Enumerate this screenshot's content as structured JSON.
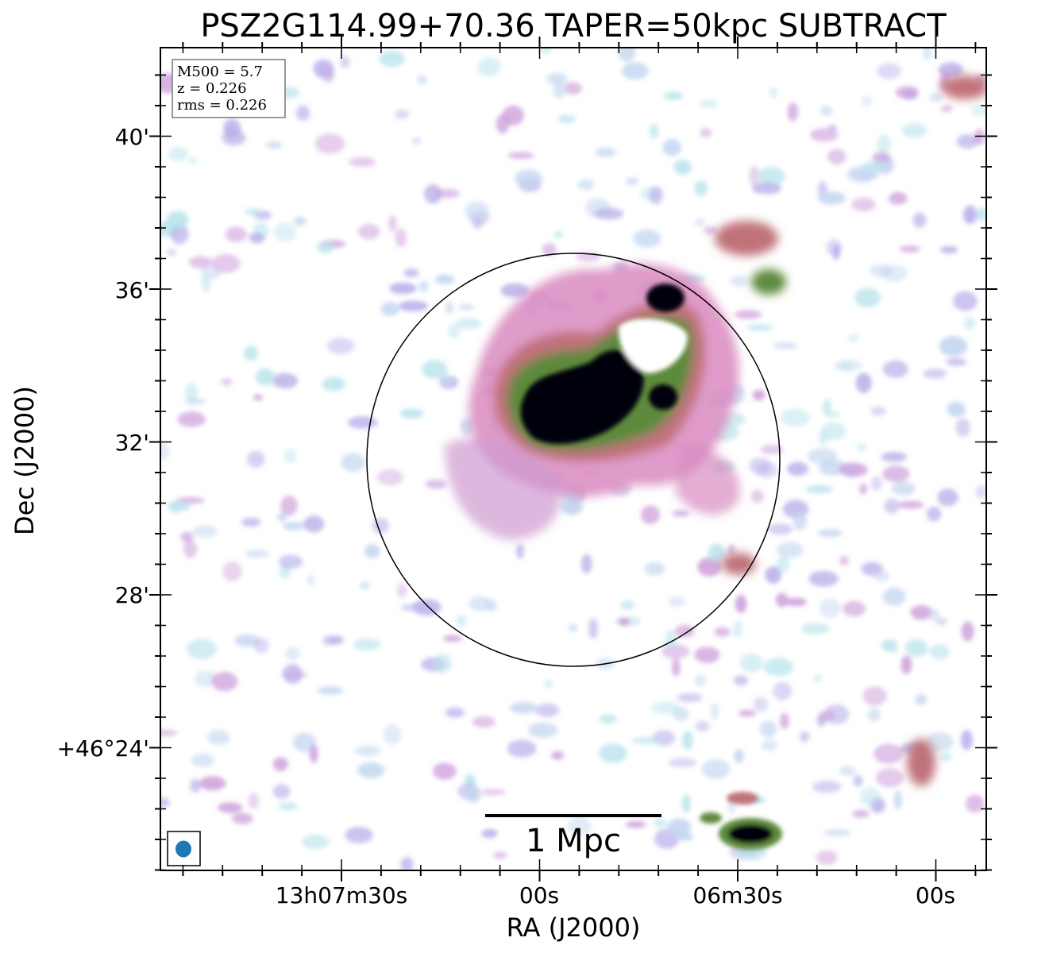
{
  "title": "PSZ2G114.99+70.36 TAPER=50kpc SUBTRACT",
  "info_box": {
    "line1": "M500 = 5.7",
    "line2": "z = 0.226",
    "line3": "rms = 0.226"
  },
  "x_axis": {
    "label": "RA (J2000)",
    "tick_labels": [
      "13h07m30s",
      "00s",
      "06m30s",
      "00s"
    ]
  },
  "y_axis": {
    "label": "Dec (J2000)",
    "tick_labels": [
      "40'",
      "36'",
      "32'",
      "28'",
      "+46°24'"
    ]
  },
  "scale_bar": {
    "label": "1 Mpc"
  },
  "colors": {
    "beam": "#1f77b4",
    "emission_low": "#b9e3ec",
    "emission_mid": "#b9b0ea",
    "emission_pink": "#d98ac0",
    "emission_red": "#c0727a",
    "emission_green": "#5d8a3c",
    "emission_peak": "#050507"
  },
  "icons": {
    "beam": "beam-ellipse-icon"
  }
}
